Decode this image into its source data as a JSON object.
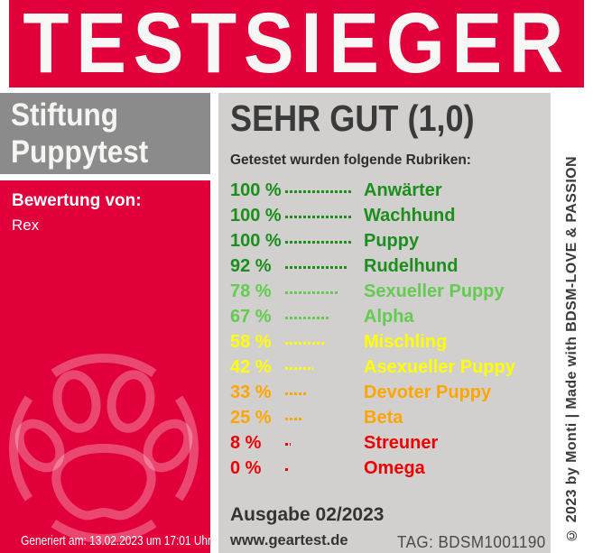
{
  "banner": {
    "title": "TESTSIEGER"
  },
  "left": {
    "org_line1": "Stiftung",
    "org_line2": "Puppytest",
    "rating_label": "Bewertung von:",
    "rating_name": "Rex",
    "generated": "Generiert am: 13.02.2023 um 17:01 Uhr"
  },
  "result": {
    "grade": "SEHR GUT (1,0)",
    "intro": "Getestet wurden folgende Rubriken:",
    "items": [
      {
        "pct": "100 %",
        "value": 100,
        "label": "Anwärter",
        "color": "#1B8E1B"
      },
      {
        "pct": "100 %",
        "value": 100,
        "label": "Wachhund",
        "color": "#1B8E1B"
      },
      {
        "pct": "100 %",
        "value": 100,
        "label": "Puppy",
        "color": "#1B8E1B"
      },
      {
        "pct": "92 %",
        "value": 92,
        "label": "Rudelhund",
        "color": "#1B8E1B"
      },
      {
        "pct": "78 %",
        "value": 78,
        "label": "Sexueller Puppy",
        "color": "#63CB50"
      },
      {
        "pct": "67 %",
        "value": 67,
        "label": "Alpha",
        "color": "#63CB50"
      },
      {
        "pct": "58 %",
        "value": 58,
        "label": "Mischling",
        "color": "#FFFF00"
      },
      {
        "pct": "42 %",
        "value": 42,
        "label": "Asexueller Puppy",
        "color": "#FFFF00"
      },
      {
        "pct": "33 %",
        "value": 33,
        "label": "Devoter Puppy",
        "color": "#FFA500"
      },
      {
        "pct": "25 %",
        "value": 25,
        "label": "Beta",
        "color": "#FFA500"
      },
      {
        "pct": "8 %",
        "value": 8,
        "label": "Streuner",
        "color": "#EE0000"
      },
      {
        "pct": "0 %",
        "value": 0,
        "label": "Omega",
        "color": "#EE0000"
      }
    ],
    "issue": "Ausgabe 02/2023",
    "website": "www.geartest.de",
    "tag": "TAG: BDSM1001190"
  },
  "copyright": "© 2023 by Monti | Made with BDSM-LOVE & PASSION",
  "colors": {
    "accent_red": "#E2003B",
    "org_gray": "#8B8B8B",
    "panel_gray": "#D2D0CF",
    "watermark": "rgba(255,255,255,0.28)"
  }
}
